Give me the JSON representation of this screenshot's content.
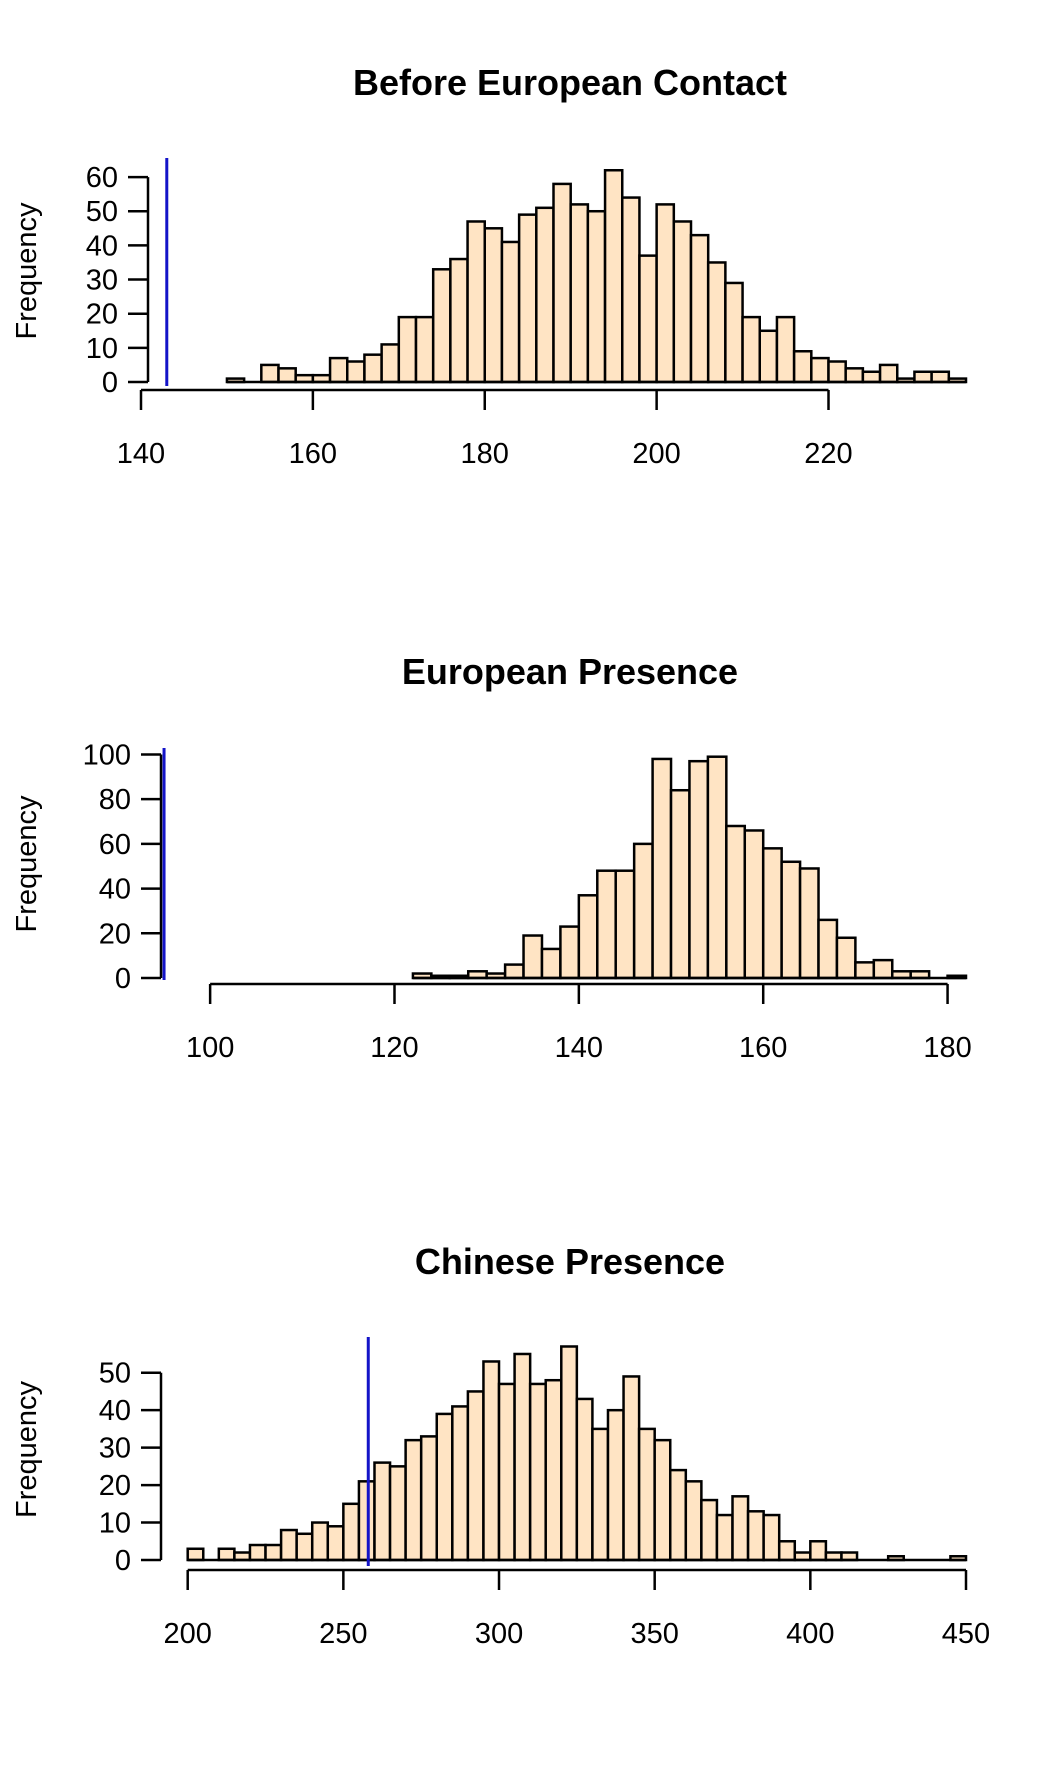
{
  "colors": {
    "bar_fill": "#FFE4C4",
    "bar_stroke": "#000000",
    "reference_line": "#1414C8"
  },
  "chart_data": [
    {
      "type": "bar",
      "title": "Before European Contact",
      "ylabel": "Frequency",
      "xlabel": "",
      "bin_width": 2,
      "bin_start": 150,
      "values": [
        1,
        0,
        5,
        4,
        2,
        2,
        7,
        6,
        8,
        11,
        19,
        19,
        33,
        36,
        47,
        45,
        41,
        49,
        51,
        58,
        52,
        50,
        62,
        54,
        37,
        52,
        47,
        43,
        35,
        29,
        19,
        15,
        19,
        9,
        7,
        6,
        4,
        3,
        5,
        1,
        3,
        3,
        1
      ],
      "reference_line": 143,
      "xlim": [
        140,
        236
      ],
      "ylim": [
        0,
        65
      ],
      "xticks": [
        140,
        160,
        180,
        200,
        220
      ],
      "yticks": [
        0,
        10,
        20,
        30,
        40,
        50,
        60
      ],
      "xaxis_range": [
        140,
        220
      ],
      "yaxis_range": [
        0,
        60
      ]
    },
    {
      "type": "bar",
      "title": "European Presence",
      "ylabel": "Frequency",
      "xlabel": "",
      "bin_width": 2,
      "bin_start": 122,
      "values": [
        2,
        1,
        1,
        3,
        2,
        6,
        19,
        13,
        23,
        37,
        48,
        48,
        60,
        98,
        84,
        97,
        99,
        68,
        66,
        58,
        52,
        49,
        26,
        18,
        7,
        8,
        3,
        3,
        0,
        1
      ],
      "reference_line": 95,
      "xlim": [
        92.5,
        182
      ],
      "ylim": [
        0,
        102
      ],
      "xticks": [
        100,
        120,
        140,
        160,
        180
      ],
      "yticks": [
        0,
        20,
        40,
        60,
        80,
        100
      ],
      "xaxis_range": [
        100,
        180
      ],
      "yaxis_range": [
        0,
        100
      ]
    },
    {
      "type": "bar",
      "title": "Chinese Presence",
      "ylabel": "Frequency",
      "xlabel": "",
      "bin_width": 5,
      "bin_start": 200,
      "values": [
        3,
        0,
        3,
        2,
        4,
        4,
        8,
        7,
        10,
        9,
        15,
        21,
        26,
        25,
        32,
        33,
        39,
        41,
        45,
        53,
        47,
        55,
        47,
        48,
        57,
        43,
        35,
        40,
        49,
        35,
        32,
        24,
        21,
        16,
        12,
        17,
        13,
        12,
        5,
        2,
        5,
        2,
        2,
        0,
        0,
        1,
        0,
        0,
        0,
        1
      ],
      "reference_line": 258,
      "xlim": [
        185,
        450
      ],
      "ylim": [
        0,
        59
      ],
      "xticks": [
        200,
        250,
        300,
        350,
        400,
        450
      ],
      "yticks": [
        0,
        10,
        20,
        30,
        40,
        50
      ],
      "xaxis_range": [
        200,
        450
      ],
      "yaxis_range": [
        0,
        50
      ]
    }
  ]
}
